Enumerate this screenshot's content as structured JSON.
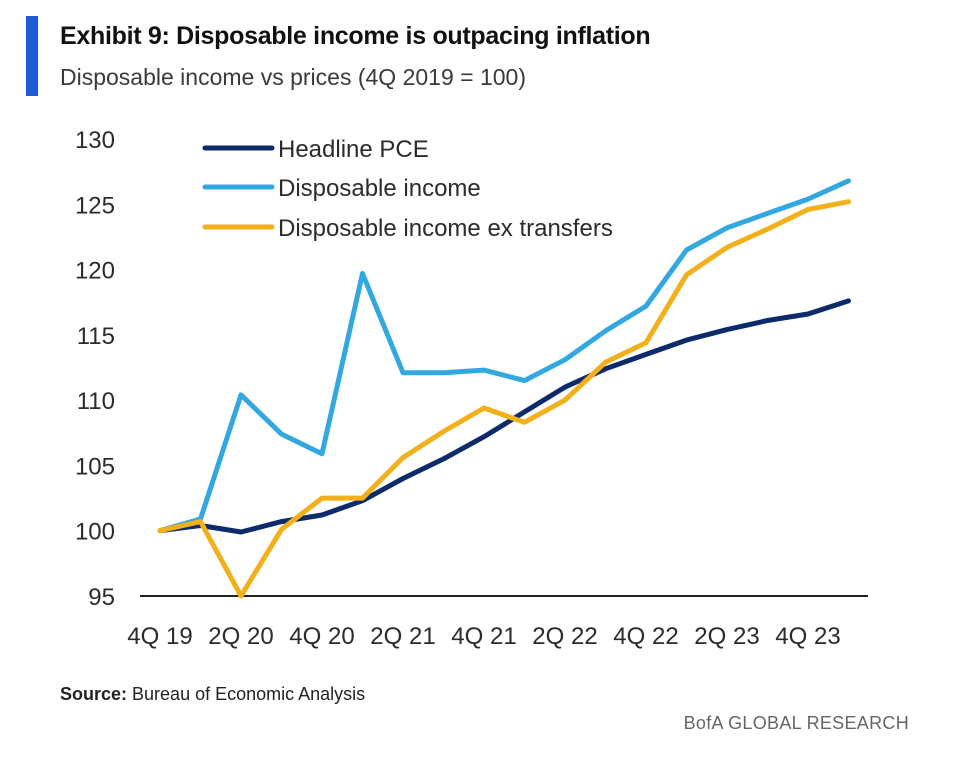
{
  "header": {
    "title": "Exhibit 9: Disposable income is outpacing inflation",
    "subtitle": "Disposable income vs prices (4Q 2019 = 100)"
  },
  "footer": {
    "source_label": "Source:",
    "source_text": " Bureau of Economic Analysis",
    "brand": "BofA GLOBAL RESEARCH"
  },
  "colors": {
    "accent": "#1f5bd6",
    "pce": "#0d2a6b",
    "income": "#33a8e0",
    "ex_transfers": "#f2b01b",
    "axis": "#222222"
  },
  "chart_data": {
    "type": "line",
    "title": "Disposable income vs prices (4Q 2019 = 100)",
    "xlabel": "",
    "ylabel": "",
    "ylim": [
      95,
      130
    ],
    "yticks": [
      95,
      100,
      105,
      110,
      115,
      120,
      125,
      130
    ],
    "x": [
      "4Q 19",
      "1Q 20",
      "2Q 20",
      "3Q 20",
      "4Q 20",
      "1Q 21",
      "2Q 21",
      "3Q 21",
      "4Q 21",
      "1Q 22",
      "2Q 22",
      "3Q 22",
      "4Q 22",
      "1Q 23",
      "2Q 23",
      "3Q 23",
      "4Q 23",
      "1Q 24"
    ],
    "xtick_labels": [
      "4Q 19",
      "2Q 20",
      "4Q 20",
      "2Q 21",
      "4Q 21",
      "2Q 22",
      "4Q 22",
      "2Q 23",
      "4Q 23"
    ],
    "grid": false,
    "legend_position": "top-left",
    "series": [
      {
        "name": "Headline PCE",
        "color_key": "pce",
        "values": [
          100,
          100.4,
          99.9,
          100.7,
          101.2,
          102.3,
          104.0,
          105.5,
          107.2,
          109.1,
          111.0,
          112.4,
          113.5,
          114.6,
          115.4,
          116.1,
          116.6,
          117.6
        ]
      },
      {
        "name": "Disposable income",
        "color_key": "income",
        "values": [
          100,
          100.9,
          110.4,
          107.4,
          105.9,
          119.7,
          112.1,
          112.1,
          112.3,
          111.5,
          113.1,
          115.3,
          117.2,
          121.5,
          123.2,
          124.3,
          125.4,
          126.8
        ]
      },
      {
        "name": "Disposable income ex transfers",
        "color_key": "ex_transfers",
        "values": [
          100,
          100.7,
          95.0,
          100.1,
          102.5,
          102.5,
          105.6,
          107.6,
          109.4,
          108.3,
          110.0,
          112.9,
          114.4,
          119.6,
          121.7,
          123.1,
          124.6,
          125.2
        ]
      }
    ]
  }
}
